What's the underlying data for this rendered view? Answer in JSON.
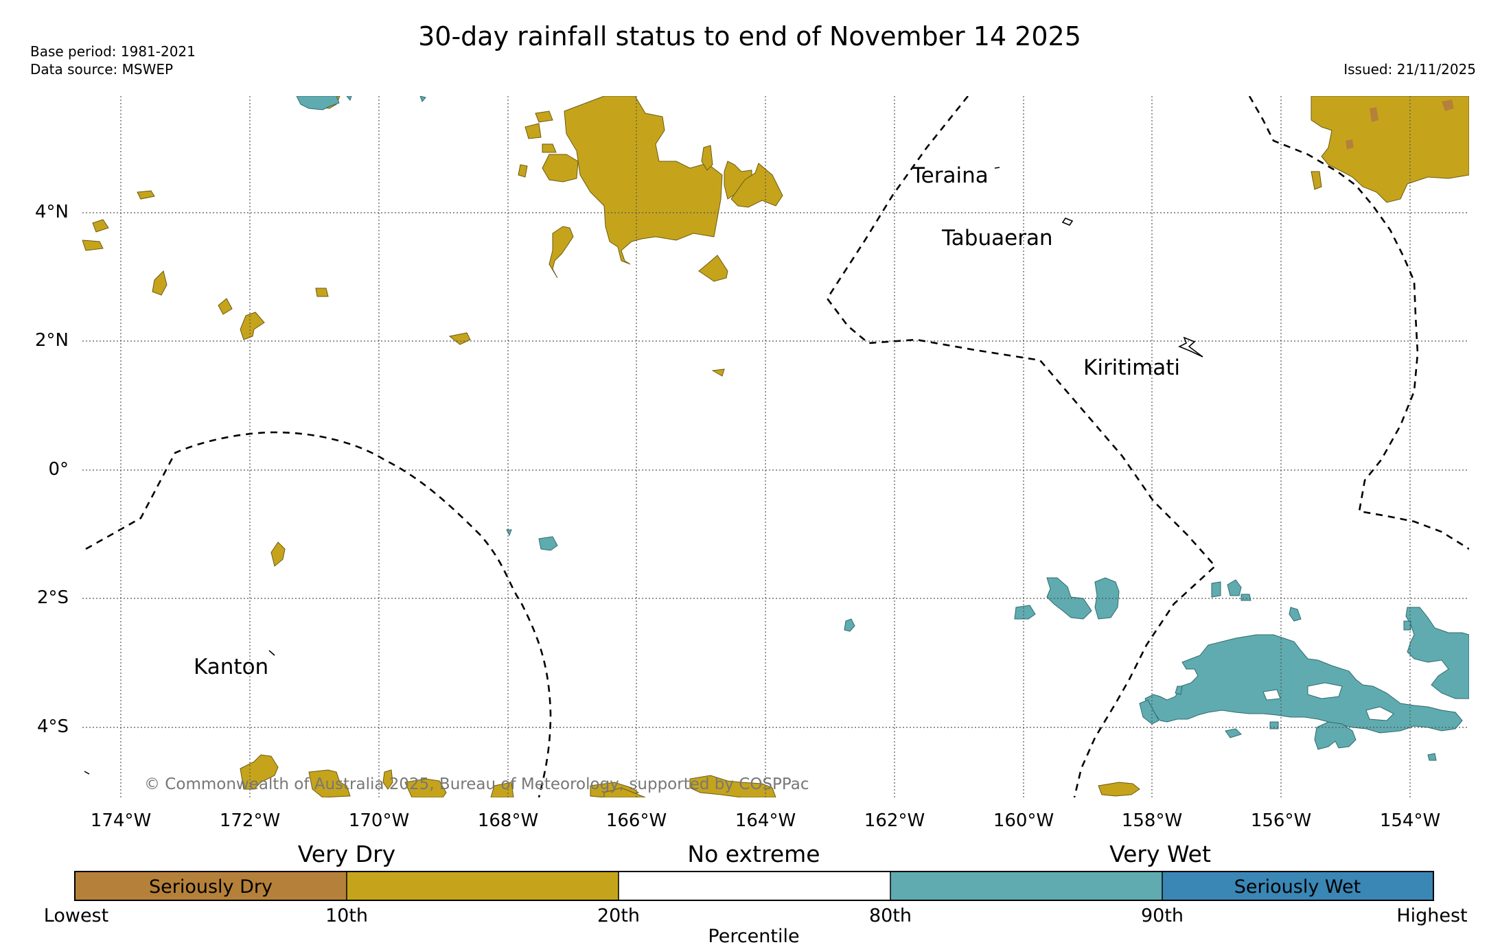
{
  "title": "30-day rainfall status to end of November 14 2025",
  "meta": {
    "base_period": "Base period: 1981-2021",
    "data_source": "Data source: MSWEP",
    "issued": "Issued: 21/11/2025"
  },
  "copyright": "© Commonwealth of Australia 2025, Bureau of Meteorology, supported by COSPPac",
  "places": {
    "teraina": "Teraina",
    "tabuaeran": "Tabuaeran",
    "kiritimati": "Kiritimati",
    "kanton": "Kanton"
  },
  "axes": {
    "x_ticks": [
      "174°W",
      "172°W",
      "170°W",
      "168°W",
      "166°W",
      "164°W",
      "162°W",
      "160°W",
      "158°W",
      "156°W",
      "154°W"
    ],
    "y_ticks": [
      "4°N",
      "2°N",
      "0°",
      "2°S",
      "4°S"
    ]
  },
  "legend": {
    "groups": [
      "Very Dry",
      "No extreme",
      "Very Wet"
    ],
    "bins": [
      "Seriously Dry",
      "",
      "",
      "",
      "Seriously Wet"
    ],
    "tick_labels": [
      "Lowest",
      "10th",
      "20th",
      "80th",
      "90th",
      "Highest"
    ],
    "axis_label": "Percentile",
    "colors": [
      "#b5813a",
      "#c5a41c",
      "#ffffff",
      "#5fabb0",
      "#3a86b5"
    ]
  },
  "colors": {
    "very_dry": "#c5a41c",
    "seriously_dry": "#b5813a",
    "very_wet": "#5fabb0",
    "grid": "#555555"
  }
}
